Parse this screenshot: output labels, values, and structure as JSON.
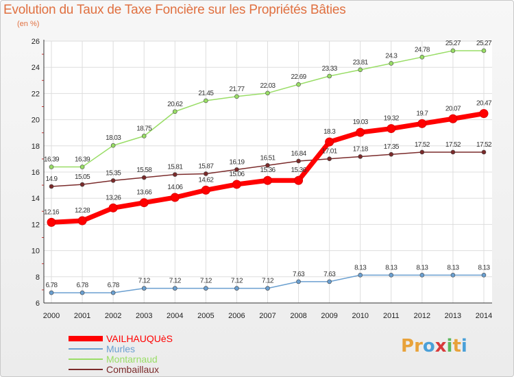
{
  "header": {
    "title": "Evolution du Taux de Taxe Foncière sur les Propriétés Bâties",
    "subtitle": "(en %)"
  },
  "logo": {
    "text": "Proxiti",
    "letters": [
      "P",
      "r",
      "o",
      "x",
      "i",
      "t",
      "i"
    ],
    "colors": [
      "#e8a23a",
      "#e8a23a",
      "#4aa0d8",
      "#d83a3a",
      "#5cb85c",
      "#e8a23a",
      "#4aa0d8"
    ]
  },
  "chart_data": {
    "type": "line",
    "x": [
      2000,
      2001,
      2002,
      2003,
      2004,
      2005,
      2006,
      2007,
      2008,
      2009,
      2010,
      2011,
      2012,
      2013,
      2014
    ],
    "ylim": [
      6,
      26
    ],
    "yticks": [
      6,
      8,
      10,
      12,
      14,
      16,
      18,
      20,
      22,
      24,
      26
    ],
    "grid": true,
    "legend": "bottom-left",
    "series": [
      {
        "name": "VAILHAUQUèS",
        "color": "#ff0000",
        "labels": [
          "12.16",
          "12.28",
          "13.26",
          "13.66",
          "14.06",
          "14.62",
          "15.06",
          "15.36",
          "15.36",
          "18.3",
          "19.03",
          "19.32",
          "19.7",
          "20.07",
          "20.47"
        ],
        "values": [
          12.16,
          12.28,
          13.26,
          13.66,
          14.06,
          14.62,
          15.06,
          15.36,
          15.36,
          18.3,
          19.03,
          19.32,
          19.7,
          20.07,
          20.47
        ]
      },
      {
        "name": "Murles",
        "color": "#6a9fd0",
        "labels": [
          "6.78",
          "6.78",
          "6.78",
          "7.12",
          "7.12",
          "7.12",
          "7.12",
          "7.12",
          "7.63",
          "7.63",
          "8.13",
          "8.13",
          "8.13",
          "8.13",
          "8.13"
        ],
        "values": [
          6.78,
          6.78,
          6.78,
          7.12,
          7.12,
          7.12,
          7.12,
          7.12,
          7.63,
          7.63,
          8.13,
          8.13,
          8.13,
          8.13,
          8.13
        ]
      },
      {
        "name": "Montarnaud",
        "color": "#99dd66",
        "labels": [
          "16.39",
          "16.39",
          "18.03",
          "18.75",
          "20.62",
          "21.45",
          "21.77",
          "22.03",
          "22.69",
          "23.33",
          "23.81",
          "24.3",
          "24.78",
          "25.27",
          "25.27"
        ],
        "values": [
          16.39,
          16.39,
          18.03,
          18.75,
          20.62,
          21.45,
          21.77,
          22.03,
          22.69,
          23.33,
          23.81,
          24.3,
          24.78,
          25.27,
          25.27
        ]
      },
      {
        "name": "Combaillaux",
        "color": "#7a2a2a",
        "labels": [
          "14.9",
          "15.05",
          "15.35",
          "15.58",
          "15.81",
          "15.87",
          "16.19",
          "16.51",
          "16.84",
          "17.01",
          "17.18",
          "17.35",
          "17.52",
          "17.52",
          "17.52"
        ],
        "values": [
          14.9,
          15.05,
          15.35,
          15.58,
          15.81,
          15.87,
          16.19,
          16.51,
          16.84,
          17.01,
          17.18,
          17.35,
          17.52,
          17.52,
          17.52
        ]
      }
    ]
  }
}
